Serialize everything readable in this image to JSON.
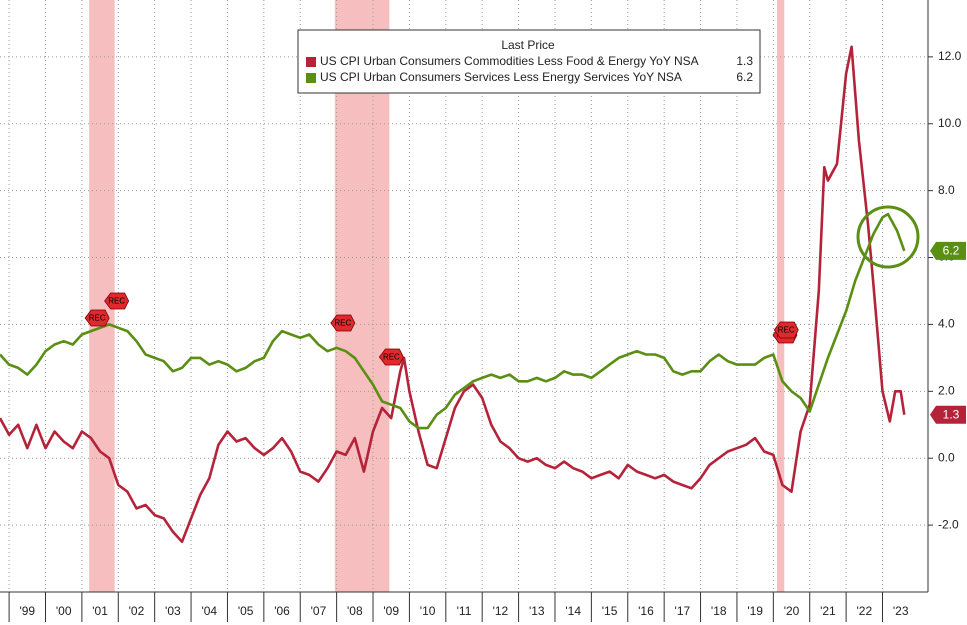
{
  "chart_data": {
    "type": "line",
    "legend_title": "Last Price",
    "recession_label": "REC",
    "recessions": [
      [
        2001.2,
        2001.9
      ],
      [
        2007.95,
        2009.45
      ],
      [
        2020.1,
        2020.3
      ]
    ],
    "recession_color": "#f5b3b3",
    "xlim": [
      1998.75,
      2024.25
    ],
    "xticks": [
      {
        "value": 1999,
        "label": "'99"
      },
      {
        "value": 2000,
        "label": "'00"
      },
      {
        "value": 2001,
        "label": "'01"
      },
      {
        "value": 2002,
        "label": "'02"
      },
      {
        "value": 2003,
        "label": "'03"
      },
      {
        "value": 2004,
        "label": "'04"
      },
      {
        "value": 2005,
        "label": "'05"
      },
      {
        "value": 2006,
        "label": "'06"
      },
      {
        "value": 2007,
        "label": "'07"
      },
      {
        "value": 2008,
        "label": "'08"
      },
      {
        "value": 2009,
        "label": "'09"
      },
      {
        "value": 2010,
        "label": "'10"
      },
      {
        "value": 2011,
        "label": "'11"
      },
      {
        "value": 2012,
        "label": "'12"
      },
      {
        "value": 2013,
        "label": "'13"
      },
      {
        "value": 2014,
        "label": "'14"
      },
      {
        "value": 2015,
        "label": "'15"
      },
      {
        "value": 2016,
        "label": "'16"
      },
      {
        "value": 2017,
        "label": "'17"
      },
      {
        "value": 2018,
        "label": "'18"
      },
      {
        "value": 2019,
        "label": "'19"
      },
      {
        "value": 2020,
        "label": "'20"
      },
      {
        "value": 2021,
        "label": "'21"
      },
      {
        "value": 2022,
        "label": "'22"
      },
      {
        "value": 2023,
        "label": "'23"
      }
    ],
    "ylim": [
      -4.0,
      13.7
    ],
    "yticks": [
      {
        "value": -2,
        "label": "-2.0"
      },
      {
        "value": 0,
        "label": "0.0"
      },
      {
        "value": 2,
        "label": "2.0"
      },
      {
        "value": 4,
        "label": "4.0"
      },
      {
        "value": 6,
        "label": "6.0"
      },
      {
        "value": 8,
        "label": "8.0"
      },
      {
        "value": 10,
        "label": "10.0"
      },
      {
        "value": 12,
        "label": "12.0"
      }
    ],
    "grid": true,
    "series": [
      {
        "name": "US CPI Urban Consumers Commodities Less Food & Energy YoY NSA",
        "color": "#b5233a",
        "last_price": 1.3,
        "x": [
          1998.75,
          1999,
          1999.25,
          1999.5,
          1999.75,
          2000,
          2000.25,
          2000.5,
          2000.75,
          2001,
          2001.25,
          2001.5,
          2001.75,
          2002,
          2002.25,
          2002.5,
          2002.75,
          2003,
          2003.25,
          2003.5,
          2003.75,
          2004,
          2004.25,
          2004.5,
          2004.75,
          2005,
          2005.25,
          2005.5,
          2005.75,
          2006,
          2006.25,
          2006.5,
          2006.75,
          2007,
          2007.25,
          2007.5,
          2007.75,
          2008,
          2008.25,
          2008.5,
          2008.75,
          2009,
          2009.25,
          2009.5,
          2009.75,
          2009.85,
          2010,
          2010.25,
          2010.5,
          2010.75,
          2011,
          2011.25,
          2011.5,
          2011.75,
          2012,
          2012.25,
          2012.5,
          2012.75,
          2013,
          2013.25,
          2013.5,
          2013.75,
          2014,
          2014.25,
          2014.5,
          2014.75,
          2015,
          2015.25,
          2015.5,
          2015.75,
          2016,
          2016.25,
          2016.5,
          2016.75,
          2017,
          2017.25,
          2017.5,
          2017.75,
          2018,
          2018.25,
          2018.5,
          2018.75,
          2019,
          2019.25,
          2019.5,
          2019.75,
          2020,
          2020.25,
          2020.5,
          2020.75,
          2021,
          2021.25,
          2021.4,
          2021.5,
          2021.75,
          2022,
          2022.15,
          2022.35,
          2022.6,
          2022.75,
          2023,
          2023.2,
          2023.35,
          2023.5,
          2023.6
        ],
        "values": [
          1.2,
          0.7,
          1.0,
          0.3,
          1.0,
          0.3,
          0.8,
          0.5,
          0.3,
          0.8,
          0.6,
          0.2,
          0.0,
          -0.8,
          -1.0,
          -1.5,
          -1.4,
          -1.7,
          -1.8,
          -2.2,
          -2.5,
          -1.8,
          -1.1,
          -0.6,
          0.4,
          0.8,
          0.5,
          0.6,
          0.3,
          0.1,
          0.3,
          0.6,
          0.2,
          -0.4,
          -0.5,
          -0.7,
          -0.3,
          0.2,
          0.1,
          0.6,
          -0.4,
          0.8,
          1.5,
          1.2,
          2.6,
          3.0,
          2.0,
          0.8,
          -0.2,
          -0.3,
          0.6,
          1.5,
          2.0,
          2.2,
          1.8,
          1.0,
          0.5,
          0.3,
          0.0,
          -0.1,
          0.0,
          -0.2,
          -0.3,
          -0.1,
          -0.3,
          -0.4,
          -0.6,
          -0.5,
          -0.4,
          -0.6,
          -0.2,
          -0.4,
          -0.5,
          -0.6,
          -0.5,
          -0.7,
          -0.8,
          -0.9,
          -0.6,
          -0.2,
          0.0,
          0.2,
          0.3,
          0.4,
          0.6,
          0.2,
          0.1,
          -0.8,
          -1.0,
          0.8,
          1.6,
          5.0,
          8.7,
          8.3,
          8.8,
          11.5,
          12.3,
          9.5,
          7.0,
          5.2,
          2.0,
          1.1,
          2.0,
          2.0,
          1.3
        ]
      },
      {
        "name": "US CPI Urban Consumers Services Less Energy Services YoY NSA",
        "color": "#5a8f14",
        "last_price": 6.2,
        "x": [
          1998.75,
          1999,
          1999.25,
          1999.5,
          1999.75,
          2000,
          2000.25,
          2000.5,
          2000.75,
          2001,
          2001.25,
          2001.5,
          2001.75,
          2002,
          2002.25,
          2002.5,
          2002.75,
          2003,
          2003.25,
          2003.5,
          2003.75,
          2004,
          2004.25,
          2004.5,
          2004.75,
          2005,
          2005.25,
          2005.5,
          2005.75,
          2006,
          2006.25,
          2006.5,
          2006.75,
          2007,
          2007.25,
          2007.5,
          2007.75,
          2008,
          2008.25,
          2008.5,
          2008.75,
          2009,
          2009.25,
          2009.5,
          2009.75,
          2010,
          2010.25,
          2010.5,
          2010.75,
          2011,
          2011.25,
          2011.5,
          2011.75,
          2012,
          2012.25,
          2012.5,
          2012.75,
          2013,
          2013.25,
          2013.5,
          2013.75,
          2014,
          2014.25,
          2014.5,
          2014.75,
          2015,
          2015.25,
          2015.5,
          2015.75,
          2016,
          2016.25,
          2016.5,
          2016.75,
          2017,
          2017.25,
          2017.5,
          2017.75,
          2018,
          2018.25,
          2018.5,
          2018.75,
          2019,
          2019.25,
          2019.5,
          2019.75,
          2020,
          2020.25,
          2020.5,
          2020.75,
          2021,
          2021.25,
          2021.5,
          2021.75,
          2022,
          2022.25,
          2022.5,
          2022.75,
          2023,
          2023.15,
          2023.4,
          2023.6
        ],
        "values": [
          3.1,
          2.8,
          2.7,
          2.5,
          2.8,
          3.2,
          3.4,
          3.5,
          3.4,
          3.7,
          3.8,
          3.9,
          4.0,
          3.9,
          3.8,
          3.5,
          3.1,
          3.0,
          2.9,
          2.6,
          2.7,
          3.0,
          3.0,
          2.8,
          2.9,
          2.8,
          2.6,
          2.7,
          2.9,
          3.0,
          3.5,
          3.8,
          3.7,
          3.6,
          3.7,
          3.4,
          3.2,
          3.3,
          3.2,
          3.0,
          2.6,
          2.2,
          1.7,
          1.6,
          1.5,
          1.1,
          0.9,
          0.9,
          1.3,
          1.5,
          1.9,
          2.1,
          2.3,
          2.4,
          2.5,
          2.4,
          2.5,
          2.3,
          2.3,
          2.4,
          2.3,
          2.4,
          2.6,
          2.5,
          2.5,
          2.4,
          2.6,
          2.8,
          3.0,
          3.1,
          3.2,
          3.1,
          3.1,
          3.0,
          2.6,
          2.5,
          2.6,
          2.6,
          2.9,
          3.1,
          2.9,
          2.8,
          2.8,
          2.8,
          3.0,
          3.1,
          2.3,
          2.0,
          1.8,
          1.4,
          2.2,
          3.0,
          3.7,
          4.4,
          5.3,
          6.0,
          6.7,
          7.2,
          7.3,
          6.8,
          6.2
        ]
      }
    ]
  }
}
